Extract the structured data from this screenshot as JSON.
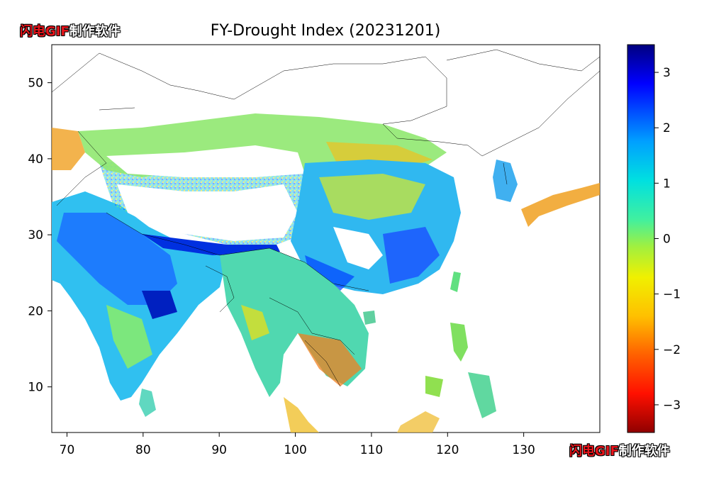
{
  "title": "FY-Drought Index (20231201)",
  "watermark": {
    "red": "闪电GIF",
    "white": "制作软件"
  },
  "map": {
    "x_ticks": [
      70,
      80,
      90,
      100,
      110,
      120,
      130
    ],
    "y_ticks": [
      10,
      20,
      30,
      40,
      50
    ],
    "lon_range": [
      68,
      140
    ],
    "lat_range": [
      4,
      55
    ]
  },
  "colorbar": {
    "range": [
      -3.5,
      3.5
    ],
    "ticks": [
      "3",
      "2",
      "1",
      "0",
      "−1",
      "−2",
      "−3"
    ],
    "tick_values": [
      3,
      2,
      1,
      0,
      -1,
      -2,
      -3
    ]
  },
  "colors": {
    "wet": "#0000d0",
    "dry": "#b00000",
    "neutral": "#40e0a0"
  }
}
